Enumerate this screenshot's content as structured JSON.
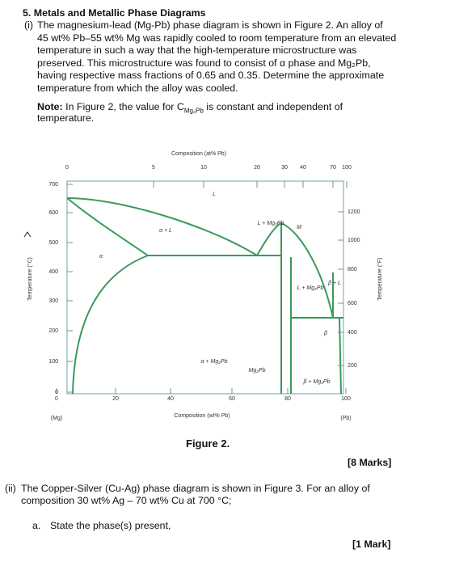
{
  "heading": "5. Metals and Metallic Phase Diagrams",
  "part_i": {
    "label": "(i)",
    "lines": [
      "The magnesium-lead (Mg-Pb) phase diagram is shown in Figure 2. An alloy of",
      "45 wt% Pb–55 wt% Mg was rapidly cooled to room temperature from an elevated",
      "temperature in such a way that the high-temperature microstructure was",
      "preserved. This microstructure was found to consist of α phase and Mg₂Pb,",
      "having respective mass fractions of 0.65 and 0.35. Determine the approximate",
      "temperature from which the alloy was cooled."
    ],
    "note": {
      "label": "Note:",
      "text_before": "In Figure 2, the value for C",
      "subscript": "Mg₂Pb",
      "text_after": "is constant and independent of",
      "line2": "temperature."
    },
    "marks": "[8 Marks]"
  },
  "figure": {
    "caption": "Figure 2.",
    "top_axis_title": "Composition (at% Pb)",
    "bottom_axis_title": "Composition (wt% Pb)",
    "left_axis_title": "Temperature (°C)",
    "right_axis_title": "Temperature (°F)",
    "top_ticks": [
      "0",
      "5",
      "10",
      "20",
      "30",
      "40",
      "70",
      "100"
    ],
    "bottom_ticks": [
      "0",
      "20",
      "40",
      "60",
      "80",
      "100"
    ],
    "left_ticks": [
      "700",
      "600",
      "500",
      "400",
      "300",
      "200",
      "100",
      "0"
    ],
    "right_ticks": [
      "1200",
      "1000",
      "800",
      "600",
      "400",
      "200"
    ],
    "end_labels": [
      "(Mg)",
      "(Pb)"
    ],
    "region_labels": [
      "L",
      "α + L",
      "α",
      "L + Mg₂Pb",
      "M",
      "L + Mg₂Pb",
      "β + L",
      "β",
      "α + Mg₂Pb",
      "Mg₂Pb",
      "β + Mg₂Pb"
    ]
  },
  "part_ii": {
    "label": "(ii)",
    "lines": [
      "The Copper-Silver (Cu-Ag) phase diagram is shown in Figure 3. For an alloy of",
      "composition 30 wt% Ag – 70 wt% Cu at 700 °C;"
    ],
    "sub_a": {
      "label": "a.",
      "text": "State the phase(s) present,"
    },
    "marks": "[1 Mark]"
  }
}
